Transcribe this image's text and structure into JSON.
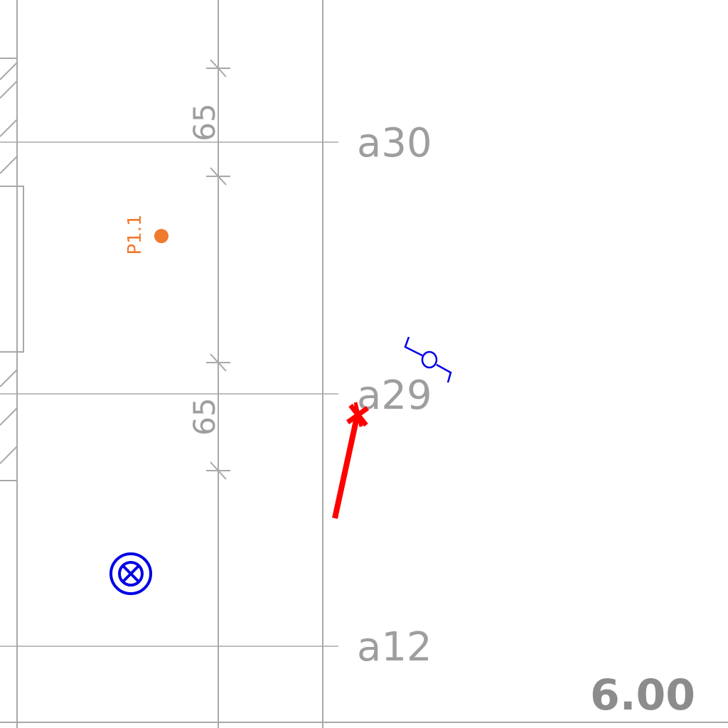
{
  "grid_axes": [
    {
      "label": "a30"
    },
    {
      "label": "a29"
    },
    {
      "label": "a12"
    }
  ],
  "dimensions": [
    {
      "label": "65"
    },
    {
      "label": "65"
    }
  ],
  "point": {
    "label": "P1.1"
  },
  "level": {
    "label": "6.00"
  },
  "colors": {
    "grid": "#a8a8a8",
    "point": "#f07a2e",
    "symbol": "#0000e6",
    "marker": "#ff0000"
  }
}
